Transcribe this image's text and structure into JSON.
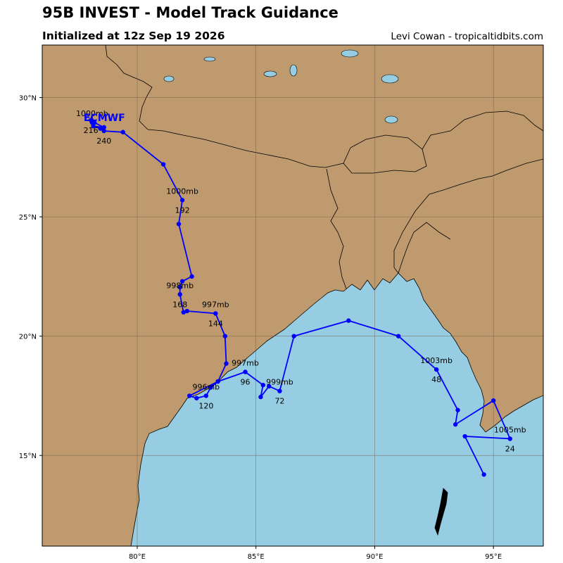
{
  "header": {
    "title": "95B INVEST - Model Track Guidance",
    "subtitle": "Initialized at 12z Sep 19 2026",
    "credit": "Levi Cowan - tropicaltidbits.com"
  },
  "colors": {
    "land": "#bf9a6e",
    "water": "#96cde2",
    "track": "#0000ff",
    "grid": "#6b5a45"
  },
  "map": {
    "lon_range": [
      76.0,
      97.1
    ],
    "lat_range": [
      11.2,
      32.2
    ],
    "lon_ticks": [
      {
        "value": 80,
        "label": "80°E"
      },
      {
        "value": 85,
        "label": "85°E"
      },
      {
        "value": 90,
        "label": "90°E"
      },
      {
        "value": 95,
        "label": "95°E"
      }
    ],
    "lat_ticks": [
      {
        "value": 15,
        "label": "15°N"
      },
      {
        "value": 20,
        "label": "20°N"
      },
      {
        "value": 25,
        "label": "25°N"
      },
      {
        "value": 30,
        "label": "30°N"
      }
    ]
  },
  "track": {
    "model": "ECMWF",
    "points": [
      {
        "lon": 94.6,
        "lat": 14.2
      },
      {
        "lon": 93.8,
        "lat": 15.8
      },
      {
        "lon": 95.7,
        "lat": 15.7,
        "hour": "24",
        "pressure": "1005mb"
      },
      {
        "lon": 95.0,
        "lat": 17.3
      },
      {
        "lon": 93.4,
        "lat": 16.3
      },
      {
        "lon": 93.5,
        "lat": 16.9
      },
      {
        "lon": 92.6,
        "lat": 18.6,
        "hour": "48",
        "pressure": "1003mb"
      },
      {
        "lon": 91.0,
        "lat": 20.0
      },
      {
        "lon": 88.9,
        "lat": 20.65
      },
      {
        "lon": 86.6,
        "lat": 20.0
      },
      {
        "lon": 86.0,
        "lat": 17.7,
        "hour": "72",
        "pressure": "999mb"
      },
      {
        "lon": 85.55,
        "lat": 17.9
      },
      {
        "lon": 85.2,
        "lat": 17.45
      },
      {
        "lon": 85.3,
        "lat": 17.95
      },
      {
        "lon": 84.55,
        "lat": 18.5,
        "hour": "96",
        "pressure": "997mb"
      },
      {
        "lon": 83.4,
        "lat": 18.1
      },
      {
        "lon": 83.1,
        "lat": 17.85
      },
      {
        "lon": 82.9,
        "lat": 17.5,
        "hour": "120",
        "pressure": "996mb"
      },
      {
        "lon": 82.5,
        "lat": 17.4
      },
      {
        "lon": 82.2,
        "lat": 17.5
      },
      {
        "lon": 83.4,
        "lat": 18.1
      },
      {
        "lon": 83.75,
        "lat": 18.85
      },
      {
        "lon": 83.7,
        "lat": 20.0
      },
      {
        "lon": 83.3,
        "lat": 20.95,
        "hour": "144",
        "pressure": "997mb"
      },
      {
        "lon": 82.1,
        "lat": 21.05
      },
      {
        "lon": 81.95,
        "lat": 21.0
      },
      {
        "lon": 81.8,
        "lat": 21.75,
        "hour": "168",
        "pressure": "998mb"
      },
      {
        "lon": 81.8,
        "lat": 22.05
      },
      {
        "lon": 81.9,
        "lat": 22.3
      },
      {
        "lon": 82.3,
        "lat": 22.5
      },
      {
        "lon": 81.75,
        "lat": 24.7
      },
      {
        "lon": 81.9,
        "lat": 25.7,
        "hour": "192",
        "pressure": "1000mb"
      },
      {
        "lon": 81.1,
        "lat": 27.2
      },
      {
        "lon": 79.4,
        "lat": 28.55
      },
      {
        "lon": 78.6,
        "lat": 28.6,
        "hour": "240"
      },
      {
        "lon": 78.45,
        "lat": 28.7
      },
      {
        "lon": 78.15,
        "lat": 28.8
      },
      {
        "lon": 78.6,
        "lat": 28.75
      },
      {
        "lon": 78.2,
        "lat": 28.95
      },
      {
        "lon": 78.05,
        "lat": 29.05,
        "hour": "216"
      },
      {
        "lon": 78.1,
        "lat": 28.95,
        "pressure": "1000mb"
      }
    ]
  }
}
